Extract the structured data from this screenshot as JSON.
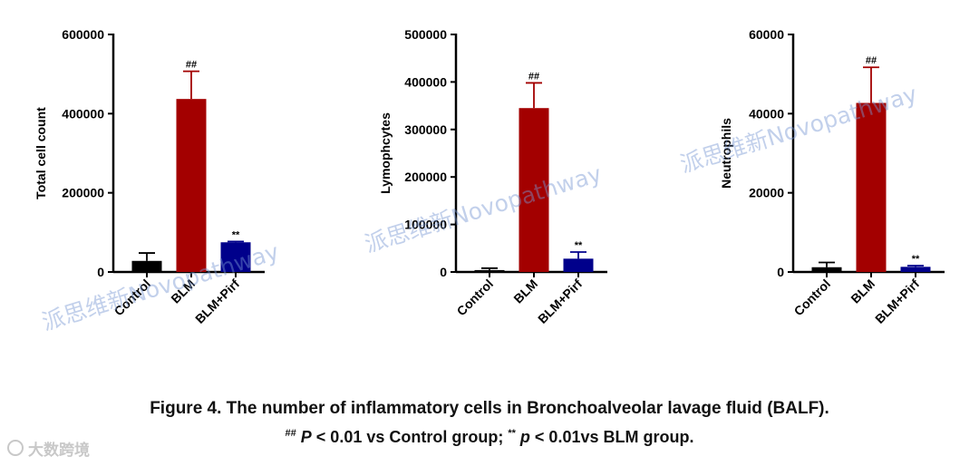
{
  "chart_data": [
    {
      "type": "bar",
      "ylabel": "Total cell count",
      "categories": [
        "Control",
        "BLM",
        "BLM+Pirf"
      ],
      "values": [
        28000,
        437000,
        75000
      ],
      "errors": [
        20000,
        70000,
        2000
      ],
      "annotations": [
        "",
        "##",
        "**"
      ],
      "ylim": [
        0,
        600000
      ],
      "yticks": [
        "0",
        "200000",
        "400000",
        "600000"
      ],
      "colors": [
        "#000000",
        "#a30000",
        "#00008b"
      ]
    },
    {
      "type": "bar",
      "ylabel": "Lymophcytes",
      "categories": [
        "Control",
        "BLM",
        "BLM+Pirf"
      ],
      "values": [
        4000,
        345000,
        28000
      ],
      "errors": [
        4000,
        53000,
        14000
      ],
      "annotations": [
        "",
        "##",
        "**"
      ],
      "ylim": [
        0,
        500000
      ],
      "yticks": [
        "0",
        "100000",
        "200000",
        "300000",
        "400000",
        "500000"
      ],
      "colors": [
        "#000000",
        "#a30000",
        "#00008b"
      ]
    },
    {
      "type": "bar",
      "ylabel": "Neutrophils",
      "categories": [
        "Control",
        "BLM",
        "BLM+Pirf"
      ],
      "values": [
        1200,
        42700,
        1300
      ],
      "errors": [
        1200,
        9000,
        300
      ],
      "annotations": [
        "",
        "##",
        "**"
      ],
      "ylim": [
        0,
        60000
      ],
      "yticks": [
        "0",
        "20000",
        "40000",
        "60000"
      ],
      "colors": [
        "#000000",
        "#a30000",
        "#00008b"
      ]
    }
  ],
  "caption": {
    "line1": "Figure 4. The number of inflammatory cells in Bronchoalveolar lavage fluid (BALF).",
    "sup1": "##",
    "p1": "P",
    "text1": " < 0.01 vs Control group; ",
    "sup2": "**",
    "p2": "p",
    "text2": " < 0.01vs BLM group",
    "end": "."
  },
  "watermark": "派思维新Novopathway",
  "logo_text": "大数跨境"
}
